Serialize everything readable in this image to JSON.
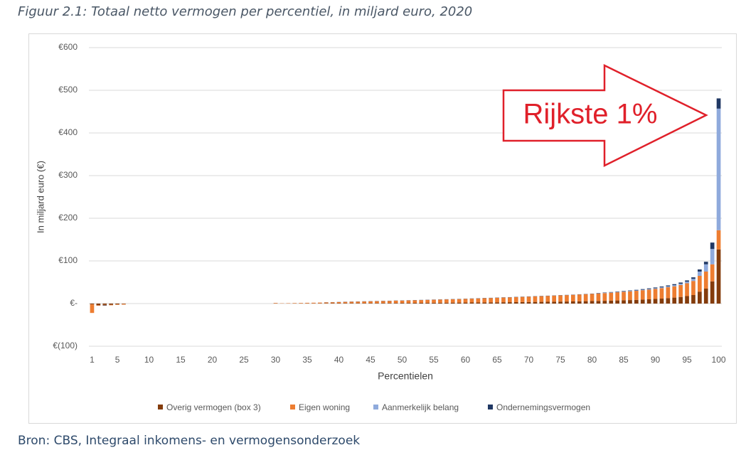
{
  "chart_data": {
    "type": "stacked_bar",
    "title": "Figuur 2.1: Totaal netto vermogen per percentiel, in miljard euro, 2020",
    "source": "Bron: CBS, Integraal inkomens- en vermogensonderzoek",
    "x_label": "Percentielen",
    "y_label": "In miljard euro (€)",
    "annotation": "Rijkste 1%",
    "categories": [
      1,
      null,
      null,
      null,
      5,
      null,
      null,
      null,
      null,
      10,
      null,
      null,
      null,
      null,
      15,
      null,
      null,
      null,
      null,
      20,
      null,
      null,
      null,
      null,
      25,
      null,
      null,
      null,
      null,
      30,
      null,
      null,
      null,
      null,
      35,
      null,
      null,
      null,
      null,
      40,
      null,
      null,
      null,
      null,
      45,
      null,
      null,
      null,
      null,
      50,
      null,
      null,
      null,
      null,
      55,
      null,
      null,
      null,
      null,
      60,
      null,
      null,
      null,
      null,
      65,
      null,
      null,
      null,
      null,
      70,
      null,
      null,
      null,
      null,
      75,
      null,
      null,
      null,
      null,
      80,
      null,
      null,
      null,
      null,
      85,
      null,
      null,
      null,
      null,
      90,
      null,
      null,
      null,
      null,
      95,
      null,
      null,
      null,
      null,
      100
    ],
    "ylim": [
      -100,
      600
    ],
    "yticks": [
      {
        "value": -100,
        "label": "€(100)"
      },
      {
        "value": 0,
        "label": "€-"
      },
      {
        "value": 100,
        "label": "€100"
      },
      {
        "value": 200,
        "label": "€200"
      },
      {
        "value": 300,
        "label": "€300"
      },
      {
        "value": 400,
        "label": "€400"
      },
      {
        "value": 500,
        "label": "€500"
      },
      {
        "value": 600,
        "label": "€600"
      }
    ],
    "grid": true,
    "legend": "bottom",
    "series": [
      {
        "name": "Overig vermogen (box 3)",
        "color": "#843c0c",
        "values": [
          -2,
          -4,
          -3,
          -3,
          -2,
          -1,
          0,
          0,
          0,
          0,
          0,
          0,
          0,
          0,
          0,
          0,
          0,
          0,
          0,
          0,
          0,
          0,
          0,
          0,
          0,
          0,
          0,
          0,
          0,
          0.5,
          0.3,
          0.3,
          0.4,
          0.4,
          0.5,
          0.5,
          0.6,
          0.7,
          0.8,
          0.9,
          1,
          1,
          1.1,
          1.1,
          1.2,
          1.2,
          1.3,
          1.3,
          1.4,
          1.5,
          1.5,
          1.6,
          1.7,
          1.8,
          1.9,
          2,
          2.1,
          2.2,
          2.3,
          2.4,
          2.5,
          2.6,
          2.7,
          2.8,
          3,
          3.1,
          3.2,
          3.4,
          3.5,
          3.7,
          3.9,
          4,
          4.2,
          4.4,
          4.6,
          4.8,
          5,
          5.3,
          5.6,
          5.9,
          6.2,
          6.5,
          6.9,
          7.3,
          7.7,
          8.2,
          8.7,
          9.3,
          10,
          10.8,
          11.7,
          12.8,
          14,
          15.5,
          17.5,
          20,
          28,
          35,
          52,
          127
        ]
      },
      {
        "name": "Eigen woning",
        "color": "#ed7d31",
        "values": [
          -20,
          -1,
          -1,
          -1,
          -1,
          -1.5,
          0,
          0,
          0,
          0,
          0,
          0,
          0,
          0,
          0,
          0,
          0,
          0,
          0,
          0,
          0,
          0,
          0,
          0,
          0,
          0,
          0,
          0,
          0,
          1,
          0.5,
          0.7,
          0.9,
          1.1,
          1.3,
          1.5,
          1.7,
          2,
          2.3,
          2.6,
          2.9,
          3.2,
          3.5,
          3.8,
          4.1,
          4.4,
          4.7,
          5,
          5.3,
          5.6,
          5.9,
          6.2,
          6.5,
          6.8,
          7.1,
          7.4,
          7.7,
          8,
          8.3,
          8.6,
          9,
          9.4,
          9.8,
          10.2,
          10.6,
          11,
          11.4,
          11.8,
          12.2,
          12.6,
          13,
          13.4,
          13.8,
          14.2,
          14.6,
          15,
          15.5,
          16,
          16.5,
          17,
          17.5,
          18,
          18.6,
          19.2,
          19.8,
          20.5,
          21.2,
          22,
          22.8,
          23.6,
          24.5,
          25.5,
          26.5,
          28,
          30,
          33,
          37,
          40,
          40,
          45
        ]
      },
      {
        "name": "Aanmerkelijk belang",
        "color": "#8faadc",
        "values": [
          0,
          0,
          0,
          0,
          0,
          0,
          0,
          0,
          0,
          0,
          0,
          0,
          0,
          0,
          0,
          0,
          0,
          0,
          0,
          0,
          0,
          0,
          0,
          0,
          0,
          0,
          0,
          0,
          0,
          0,
          0,
          0,
          0,
          0,
          0,
          0,
          0,
          0,
          0,
          0,
          0,
          0,
          0,
          0,
          0,
          0,
          0,
          0,
          0,
          0,
          0,
          0,
          0,
          0,
          0,
          0,
          0,
          0,
          0,
          0,
          0,
          0,
          0,
          0,
          0,
          0,
          0,
          0,
          0,
          0,
          0,
          0,
          0,
          0,
          0,
          0,
          0,
          0,
          0,
          0,
          0.5,
          0.5,
          0.6,
          0.7,
          0.8,
          0.9,
          1,
          1.2,
          1.4,
          1.6,
          1.9,
          2.2,
          2.6,
          3.1,
          3.8,
          5,
          10,
          17,
          36,
          285
        ]
      },
      {
        "name": "Ondernemingsvermogen",
        "color": "#203864",
        "values": [
          0,
          0,
          -1,
          0,
          0,
          0,
          0,
          0,
          0,
          0,
          0,
          0,
          0,
          0,
          0,
          0,
          0,
          0,
          0,
          0,
          0,
          0,
          0,
          0,
          0,
          0,
          0,
          0,
          0,
          0,
          0,
          0,
          0,
          0,
          0,
          0,
          0,
          0.3,
          0.3,
          0.3,
          0.4,
          0.4,
          0.4,
          0.4,
          0.4,
          0.4,
          0.4,
          0.4,
          0.4,
          0.4,
          0.4,
          0.4,
          0.4,
          0.4,
          0.4,
          0.4,
          0.4,
          0.4,
          0.4,
          0.4,
          0.5,
          0.5,
          0.5,
          0.5,
          0.5,
          0.5,
          0.5,
          0.5,
          0.5,
          0.5,
          0.5,
          0.5,
          0.5,
          0.5,
          0.5,
          0.5,
          0.5,
          0.5,
          0.5,
          0.5,
          0.7,
          0.8,
          0.9,
          1,
          1.1,
          1.2,
          1.3,
          1.4,
          1.5,
          1.7,
          1.9,
          2.1,
          2.4,
          2.7,
          3,
          3.5,
          5,
          6,
          15,
          24
        ]
      }
    ]
  }
}
